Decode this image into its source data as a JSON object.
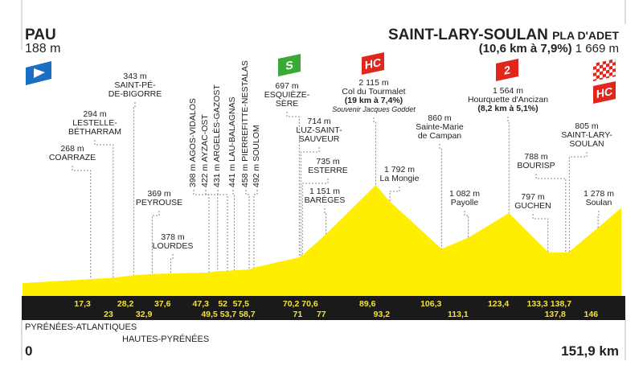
{
  "start": {
    "name": "PAU",
    "elevation": "188 m"
  },
  "finish": {
    "name": "SAINT-LARY-SOULAN",
    "suffix": "PLA D'ADET",
    "climb": "(10,6 km à 7,9%)",
    "elevation": "1 669 m"
  },
  "regions": [
    "PYRÉNÉES-ATLANTIQUES",
    "HAUTES-PYRÉNÉES"
  ],
  "distance_start": "0",
  "distance_end": "151,9 km",
  "badges": {
    "sprint": "S",
    "tourmalet": "HC",
    "hourquette": "2",
    "finish": "HC"
  },
  "colors": {
    "profile": "#ffee00",
    "band": "#1a1a1a",
    "km_text": "#f5e13a",
    "hc": "#e1261c",
    "sprint": "#3aa935",
    "start_flag": "#1a6fc4"
  },
  "chart_data": {
    "type": "area",
    "xlim": [
      0,
      151.9
    ],
    "x_unit": "km",
    "y_unit": "m",
    "profile": [
      [
        0,
        188
      ],
      [
        17.3,
        268
      ],
      [
        23,
        294
      ],
      [
        28.2,
        343
      ],
      [
        32.9,
        369
      ],
      [
        37.6,
        378
      ],
      [
        47.3,
        398
      ],
      [
        49.5,
        422
      ],
      [
        52,
        431
      ],
      [
        53.7,
        441
      ],
      [
        57.5,
        458
      ],
      [
        58.7,
        492
      ],
      [
        70.2,
        697
      ],
      [
        70.6,
        714
      ],
      [
        71,
        735
      ],
      [
        77,
        1151
      ],
      [
        89.6,
        2115
      ],
      [
        93.2,
        1792
      ],
      [
        106.3,
        860
      ],
      [
        113.1,
        1082
      ],
      [
        123.4,
        1564
      ],
      [
        133.3,
        797
      ],
      [
        137.8,
        788
      ],
      [
        138.7,
        805
      ],
      [
        146,
        1278
      ],
      [
        151.9,
        1669
      ]
    ],
    "km_top": [
      "17,3",
      "28,2",
      "37,6",
      "47,3",
      "52",
      "57,5",
      "70,2",
      "70,6",
      "89,6",
      "106,3",
      "123,4",
      "133,3",
      "138,7"
    ],
    "km_top_values": [
      17.3,
      28.2,
      37.6,
      47.3,
      52,
      57.5,
      70.2,
      70.6,
      89.6,
      106.3,
      123.4,
      133.3,
      138.7
    ],
    "km_bottom": [
      "23",
      "32,9",
      "49,5",
      "53,7",
      "58,7",
      "71",
      "77",
      "93,2",
      "113,1",
      "137,8",
      "146"
    ],
    "km_bottom_values": [
      23,
      32.9,
      49.5,
      53.7,
      58.7,
      71,
      77,
      93.2,
      113.1,
      137.8,
      146
    ],
    "places": [
      {
        "km": 17.3,
        "alt": "268 m",
        "name": "COARRAZE"
      },
      {
        "km": 23,
        "alt": "294 m",
        "name": "LESTELLE-",
        "name2": "BÉTHARRAM"
      },
      {
        "km": 28.2,
        "alt": "343 m",
        "name": "SAINT-PÉ-",
        "name2": "DE-BIGORRE"
      },
      {
        "km": 32.9,
        "alt": "369 m",
        "name": "PEYROUSE"
      },
      {
        "km": 37.6,
        "alt": "378 m",
        "name": "LOURDES"
      },
      {
        "km": 47.3,
        "text": "398 m AGOS-VIDALOS"
      },
      {
        "km": 49.5,
        "text": "422 m AYZAC-OST"
      },
      {
        "km": 52,
        "text": "431 m ARGELÈS-GAZOST"
      },
      {
        "km": 53.7,
        "text": "441 m LAU-BALAGNAS"
      },
      {
        "km": 57.5,
        "text": "458 m PIERREFITTE-NESTALAS"
      },
      {
        "km": 58.7,
        "text": "492 m SOULOM"
      },
      {
        "km": 70.2,
        "alt": "697 m",
        "name": "ESQUIÈZE-",
        "name2": "SÈRE"
      },
      {
        "km": 70.6,
        "alt": "714 m",
        "name": "LUZ-SAINT-",
        "name2": "SAUVEUR"
      },
      {
        "km": 71,
        "alt": "735 m",
        "name": "ESTERRE"
      },
      {
        "km": 77,
        "alt": "1 151 m",
        "name": "BARÈGES"
      },
      {
        "km": 89.6,
        "alt": "2 115 m",
        "name": "Col du Tourmalet",
        "climb": "(19 km à 7,4%)",
        "note": "Souvenir Jacques Goddet"
      },
      {
        "km": 93.2,
        "alt": "1 792 m",
        "name": "La Mongie"
      },
      {
        "km": 106.3,
        "alt": "860 m",
        "name": "Sainte-Marie",
        "name2": "de Campan"
      },
      {
        "km": 113.1,
        "alt": "1 082 m",
        "name": "Payolle"
      },
      {
        "km": 123.4,
        "alt": "1 564 m",
        "name": "Hourquette d'Ancizan",
        "climb": "(8,2 km à 5,1%)"
      },
      {
        "km": 133.3,
        "alt": "797 m",
        "name": "GUCHEN"
      },
      {
        "km": 137.8,
        "alt": "788 m",
        "name": "BOURISP"
      },
      {
        "km": 138.7,
        "alt": "805 m",
        "name": "SAINT-LARY-",
        "name2": "SOULAN"
      },
      {
        "km": 146,
        "alt": "1 278 m",
        "name": "Soulan"
      }
    ]
  }
}
